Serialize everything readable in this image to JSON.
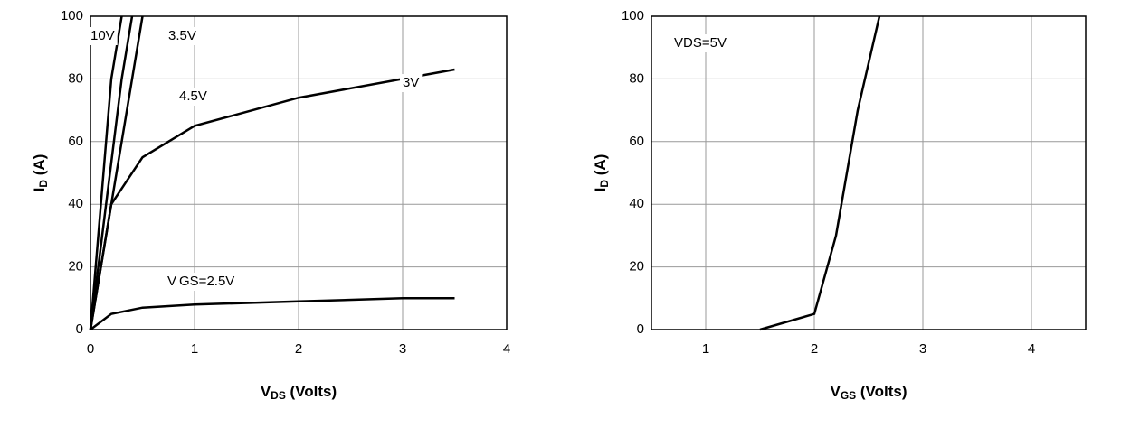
{
  "chart_data": [
    {
      "type": "line",
      "xlabel": {
        "main": "V",
        "sub": "DS",
        "rest": " (Volts)"
      },
      "ylabel": {
        "main": "I",
        "sub": "D",
        "rest": " (A)"
      },
      "xlim": [
        0,
        4
      ],
      "xticks": [
        0,
        1,
        2,
        3,
        4
      ],
      "ylim": [
        0,
        100
      ],
      "yticks": [
        0,
        20,
        40,
        60,
        80,
        100
      ],
      "grid": true,
      "series": [
        {
          "name": "10V",
          "color": "#000000",
          "x": [
            0,
            0.1,
            0.2,
            0.3
          ],
          "values": [
            0,
            40,
            80,
            100
          ]
        },
        {
          "name": "4.5V",
          "color": "#000000",
          "x": [
            0,
            0.15,
            0.3,
            0.4
          ],
          "values": [
            0,
            40,
            80,
            100
          ]
        },
        {
          "name": "3.5V",
          "color": "#000000",
          "x": [
            0,
            0.2,
            0.4,
            0.5
          ],
          "values": [
            0,
            40,
            80,
            100
          ]
        },
        {
          "name": "3V",
          "color": "#000000",
          "x": [
            0,
            0.2,
            0.5,
            1,
            2,
            3,
            3.5
          ],
          "values": [
            0,
            40,
            55,
            65,
            74,
            80,
            83
          ]
        },
        {
          "name": "V GS=2.5V",
          "color": "#000000",
          "x": [
            0,
            0.2,
            0.5,
            1,
            2,
            3,
            3.5
          ],
          "values": [
            0,
            5,
            7,
            8,
            9,
            10,
            10
          ]
        }
      ]
    },
    {
      "type": "line",
      "xlabel": {
        "main": "V",
        "sub": "GS",
        "rest": " (Volts)"
      },
      "ylabel": {
        "main": "I",
        "sub": "D",
        "rest": " (A)"
      },
      "xlim": [
        0.5,
        4.5
      ],
      "xticks": [
        1,
        2,
        3,
        4
      ],
      "ylim": [
        0,
        100
      ],
      "yticks": [
        0,
        20,
        40,
        60,
        80,
        100
      ],
      "grid": true,
      "series": [
        {
          "name": "VDS=5V",
          "color": "#000000",
          "x": [
            1.5,
            2,
            2.2,
            2.4,
            2.6
          ],
          "values": [
            0,
            5,
            30,
            70,
            100
          ]
        }
      ]
    }
  ]
}
